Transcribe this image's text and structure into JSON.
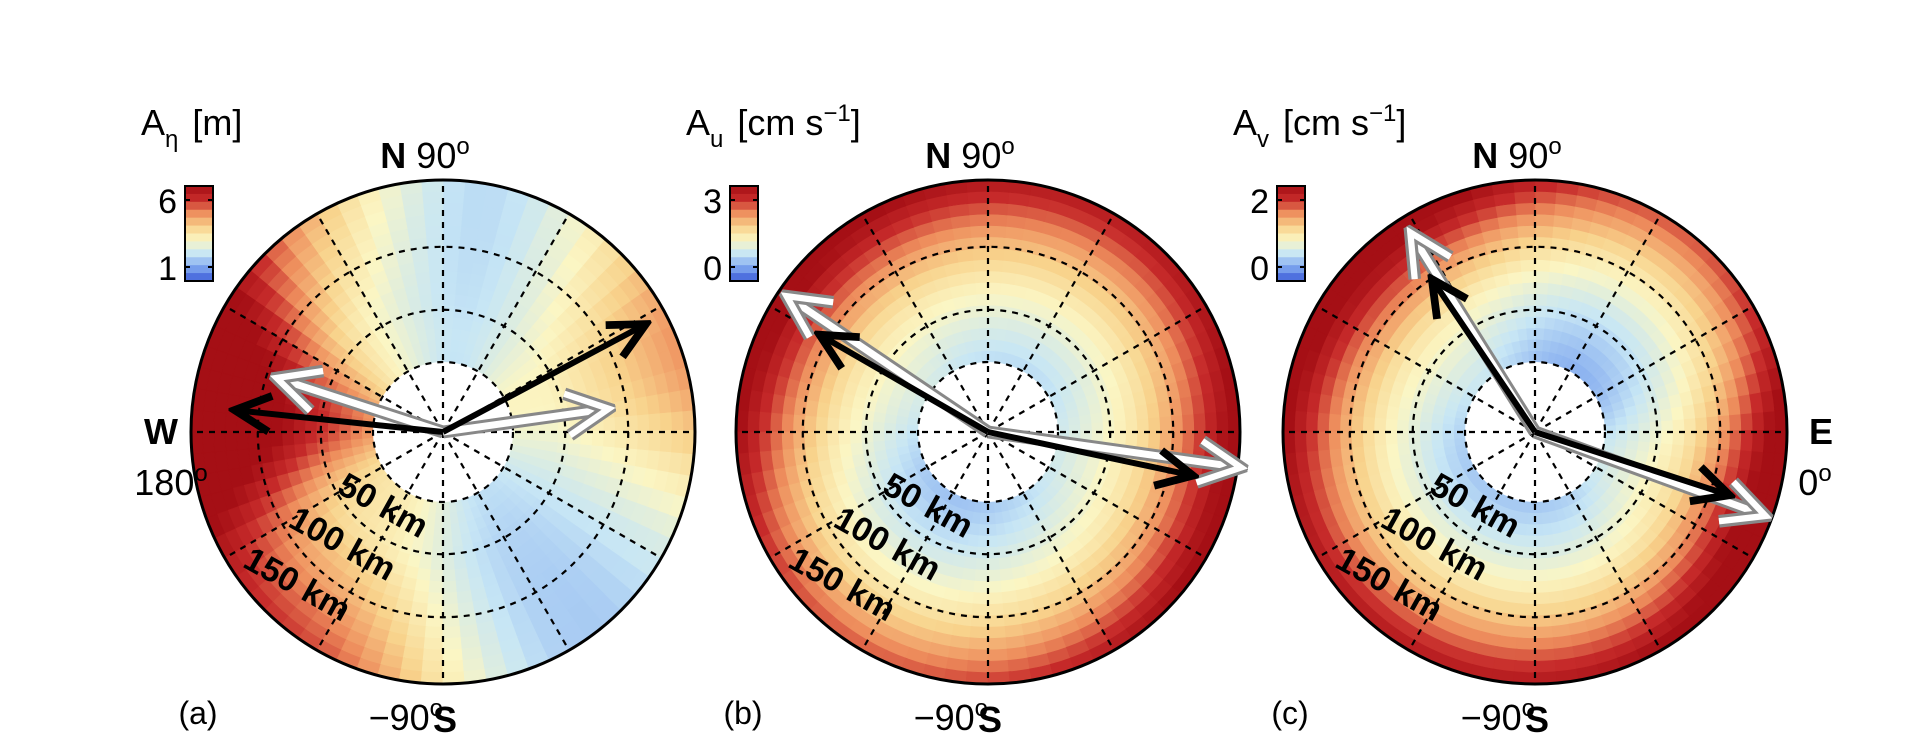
{
  "figure": {
    "compass": {
      "north": "N",
      "south": "S",
      "west": "W",
      "east": "E",
      "angle_north": "90",
      "angle_south": "−90",
      "angle_west": "180",
      "angle_east": "0",
      "degree": "o"
    },
    "ring_labels": [
      "50 km",
      "100 km",
      "150 km"
    ],
    "panels": [
      {
        "panel_label": "(a)",
        "cbar_symbol": "A",
        "cbar_subscript": "η",
        "cbar_unit": "[m]",
        "cbar_unit_superscript": "",
        "cbar_unit_after": "",
        "cbar_ticks": [
          "6",
          "1"
        ],
        "show_west": true,
        "show_east": false
      },
      {
        "panel_label": "(b)",
        "cbar_symbol": "A",
        "cbar_subscript": "u",
        "cbar_unit": "[cm s",
        "cbar_unit_superscript": "−1",
        "cbar_unit_after": "]",
        "cbar_ticks": [
          "3",
          "0"
        ],
        "show_west": false,
        "show_east": false
      },
      {
        "panel_label": "(c)",
        "cbar_symbol": "A",
        "cbar_subscript": "v",
        "cbar_unit": "[cm s",
        "cbar_unit_superscript": "−1",
        "cbar_unit_after": "]",
        "cbar_ticks": [
          "2",
          "0"
        ],
        "show_west": false,
        "show_east": true
      }
    ]
  },
  "chart_data": [
    {
      "type": "heatmap",
      "subtype": "polar",
      "panel": "(a)",
      "quantity": "A_eta",
      "unit": "m",
      "color_range": [
        1,
        6
      ],
      "radial_rings_km": [
        50,
        100,
        150
      ],
      "angle_axis_deg": [
        0,
        90,
        180,
        -90
      ],
      "colormap": [
        "#3b5bd9",
        "#7ea6ef",
        "#c7e6f5",
        "#fbf6c4",
        "#f8d38c",
        "#ee8e5d",
        "#c62a2a",
        "#a50f15"
      ],
      "field": {
        "base": 2.6,
        "radial": 0.35,
        "lobes": [
          {
            "theta": 175,
            "width": 22,
            "amp": 4.2,
            "rstart": 0.25
          },
          {
            "theta": 140,
            "width": 25,
            "amp": 1.4,
            "rstart": 0.55
          },
          {
            "theta": 20,
            "width": 25,
            "amp": 1.6,
            "rstart": 0.45
          },
          {
            "theta": 235,
            "width": 30,
            "amp": 2.2,
            "rstart": 0.5
          },
          {
            "theta": 80,
            "width": 20,
            "amp": -0.8,
            "rstart": 0.4
          },
          {
            "theta": 300,
            "width": 30,
            "amp": -1.0,
            "rstart": 0.3
          }
        ]
      },
      "vectors": [
        {
          "color": "black",
          "angle_deg": 28,
          "length_frac": 0.9
        },
        {
          "color": "black",
          "angle_deg": 174,
          "length_frac": 0.82
        },
        {
          "color": "white",
          "angle_deg": 8,
          "length_frac": 0.65
        },
        {
          "color": "white",
          "angle_deg": 162,
          "length_frac": 0.68
        }
      ]
    },
    {
      "type": "heatmap",
      "subtype": "polar",
      "panel": "(b)",
      "quantity": "A_u",
      "unit": "cm s^-1",
      "color_range": [
        0,
        3
      ],
      "radial_rings_km": [
        50,
        100,
        150
      ],
      "angle_axis_deg": [
        0,
        90,
        180,
        -90
      ],
      "colormap": [
        "#3b5bd9",
        "#7ea6ef",
        "#c7e6f5",
        "#fbf6c4",
        "#f8d38c",
        "#ee8e5d",
        "#c62a2a",
        "#a50f15"
      ],
      "field": {
        "base": 0.6,
        "radial": 2.2,
        "lobes": [
          {
            "theta": 150,
            "width": 30,
            "amp": 0.6,
            "rstart": 0.6
          },
          {
            "theta": 345,
            "width": 30,
            "amp": 0.5,
            "rstart": 0.6
          },
          {
            "theta": 240,
            "width": 40,
            "amp": -0.4,
            "rstart": 0.2
          }
        ]
      },
      "vectors": [
        {
          "color": "black",
          "angle_deg": 150,
          "length_frac": 0.76
        },
        {
          "color": "black",
          "angle_deg": -12,
          "length_frac": 0.82
        },
        {
          "color": "white",
          "angle_deg": 146,
          "length_frac": 0.95
        },
        {
          "color": "white",
          "angle_deg": -8,
          "length_frac": 1.0
        }
      ]
    },
    {
      "type": "heatmap",
      "subtype": "polar",
      "panel": "(c)",
      "quantity": "A_v",
      "unit": "cm s^-1",
      "color_range": [
        0,
        2
      ],
      "radial_rings_km": [
        50,
        100,
        150
      ],
      "angle_axis_deg": [
        0,
        90,
        180,
        -90
      ],
      "colormap": [
        "#3b5bd9",
        "#7ea6ef",
        "#c7e6f5",
        "#fbf6c4",
        "#f8d38c",
        "#ee8e5d",
        "#c62a2a",
        "#a50f15"
      ],
      "field": {
        "base": 0.3,
        "radial": 1.6,
        "lobes": [
          {
            "theta": 135,
            "width": 30,
            "amp": 0.5,
            "rstart": 0.6
          },
          {
            "theta": 340,
            "width": 25,
            "amp": 0.6,
            "rstart": 0.6
          },
          {
            "theta": 60,
            "width": 40,
            "amp": -0.3,
            "rstart": 0.3
          }
        ]
      },
      "vectors": [
        {
          "color": "black",
          "angle_deg": 124,
          "length_frac": 0.72
        },
        {
          "color": "black",
          "angle_deg": -18,
          "length_frac": 0.8
        },
        {
          "color": "white",
          "angle_deg": 122,
          "length_frac": 0.92
        },
        {
          "color": "white",
          "angle_deg": -20,
          "length_frac": 0.96
        }
      ]
    }
  ]
}
